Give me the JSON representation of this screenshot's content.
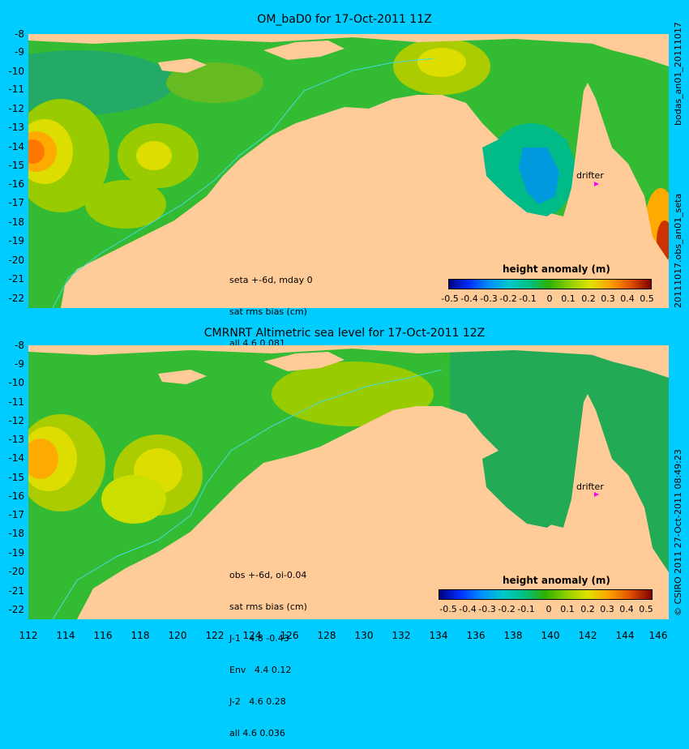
{
  "panels": [
    {
      "title": "OM_baD0 for 17-Oct-2011 11Z",
      "annotation": [
        "seta +-6d, mday 0",
        "sat rms bias (cm)",
        "all 4.6 0.081"
      ],
      "drifter_label": "drifter",
      "colorbar_title": "height anomaly (m)",
      "side_label": "20111017.obs_an01_seta",
      "top_side_label": "bodas_an01_20111017"
    },
    {
      "title": "CMRNRT Altimetric sea level  for 17-Oct-2011 12Z",
      "annotation": [
        "obs +-6d, oi-0.04",
        "sat rms bias (cm)",
        "J-1   4.8 -0.43",
        "Env   4.4 0.12",
        "J-2   4.6 0.28",
        "all 4.6 0.036"
      ],
      "drifter_label": "drifter",
      "colorbar_title": "height anomaly (m)",
      "side_label": "© CSIRO 2011  27-Oct-2011 08:49:23"
    }
  ],
  "axes": {
    "x_ticks": [
      "112",
      "114",
      "116",
      "118",
      "120",
      "122",
      "124",
      "126",
      "128",
      "130",
      "132",
      "134",
      "136",
      "138",
      "140",
      "142",
      "144",
      "146"
    ],
    "y_ticks": [
      "-8",
      "-9",
      "-10",
      "-11",
      "-12",
      "-13",
      "-14",
      "-15",
      "-16",
      "-17",
      "-18",
      "-19",
      "-20",
      "-21",
      "-22"
    ]
  },
  "colorbar": {
    "ticks": [
      "-0.5",
      "-0.4",
      "-0.3",
      "-0.2",
      "-0.1",
      "0",
      "0.1",
      "0.2",
      "0.3",
      "0.4",
      "0.5"
    ],
    "colors": [
      "#000080",
      "#0030ff",
      "#0090ff",
      "#00c8c8",
      "#00c080",
      "#30b000",
      "#90d000",
      "#e0e000",
      "#ffa000",
      "#e05000",
      "#800000"
    ]
  },
  "colors": {
    "land": "#ffcc99",
    "sea_base": "#33bb33",
    "background": "#00ccff",
    "drifter_marker": "#ff00ff"
  }
}
